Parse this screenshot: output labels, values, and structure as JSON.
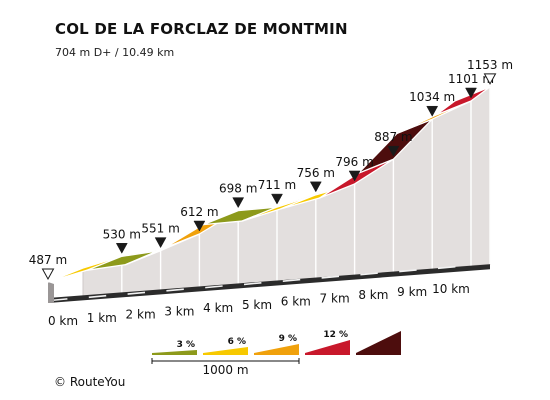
{
  "chart_data": {
    "type": "area",
    "title": "COL DE LA FORCLAZ DE MONTMIN",
    "subtitle": "704 m D+ / 10.49 km",
    "x": [
      0,
      1,
      2,
      3,
      4,
      5,
      6,
      7,
      8,
      9,
      10,
      10.49
    ],
    "x_unit": "km",
    "x_tick_labels": [
      "0 km",
      "1 km",
      "2 km",
      "3 km",
      "4 km",
      "5 km",
      "6 km",
      "7 km",
      "8 km",
      "9 km",
      "10 km"
    ],
    "elevation": [
      487,
      530,
      551,
      612,
      698,
      711,
      756,
      796,
      887,
      1034,
      1101,
      1153
    ],
    "elevation_labels": [
      "487 m",
      "530 m",
      "551 m",
      "612 m",
      "698 m",
      "711 m",
      "756 m",
      "796 m",
      "887 m",
      "1034 m",
      "1101 m",
      "1153 m"
    ],
    "segment_gradient_class": [
      "3-6%",
      "0-3%",
      "6-9%",
      "6-9%",
      "0-3%",
      "3-6%",
      "3-6%",
      "9-12%",
      ">12%",
      "6-9%",
      "9-12%"
    ],
    "start_marker": "open-triangle",
    "end_marker": "open-triangle",
    "km_marker": "filled-triangle"
  },
  "legend": {
    "items": [
      {
        "label": "3 %",
        "color": "#8d9a1b"
      },
      {
        "label": "6 %",
        "color": "#f7c900"
      },
      {
        "label": "9 %",
        "color": "#f0a10c"
      },
      {
        "label": "12 %",
        "color": "#c8182b"
      },
      {
        "label": "",
        "color": "#4d0d0d"
      }
    ],
    "scale_label": "1000 m"
  },
  "colors": {
    "0-3%": "#8d9a1b",
    "3-6%": "#f7c900",
    "6-9%": "#f0a10c",
    "9-12%": "#c8182b",
    ">12%": "#4d0d0d",
    "wall": "#e3dfde",
    "base": "#2b2b2b"
  },
  "footer": {
    "copyright_symbol": "©",
    "brand": "RouteYou"
  }
}
